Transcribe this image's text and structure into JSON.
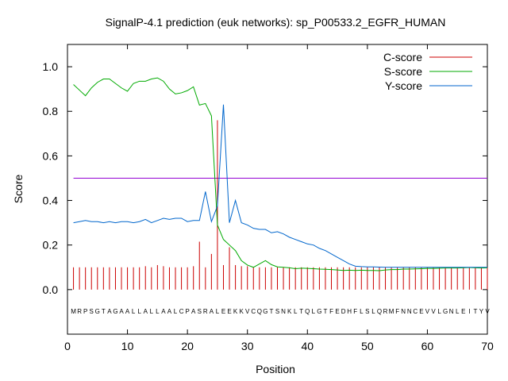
{
  "chart_data": {
    "type": "line",
    "title": "SignalP-4.1 prediction (euk networks): sp_P00533.2_EGFR_HUMAN",
    "xlabel": "Position",
    "ylabel": "Score",
    "xlim": [
      0,
      70
    ],
    "ylim": [
      -0.2,
      1.1
    ],
    "x_ticks": [
      "0",
      "10",
      "20",
      "30",
      "40",
      "50",
      "60",
      "70"
    ],
    "y_ticks": [
      "0.0",
      "0.2",
      "0.4",
      "0.6",
      "0.8",
      "1.0"
    ],
    "x_tick_values": [
      0,
      10,
      20,
      30,
      40,
      50,
      60,
      70
    ],
    "y_tick_values": [
      0,
      0.2,
      0.4,
      0.6,
      0.8,
      1.0
    ],
    "grid": false,
    "legend_position": "top-right",
    "threshold": {
      "value": 0.5,
      "color": "#9400d3"
    },
    "sequence": "MRPSGTAGAALLALLAALCPASRALEEKKVCQGTSNKLTQLGTFEDHFLSLQRMFNNCEVVLGNLEITYV",
    "series": [
      {
        "name": "C-score",
        "color": "#cc0000",
        "style": "impulses",
        "values": [
          0.1,
          0.1,
          0.1,
          0.1,
          0.1,
          0.1,
          0.1,
          0.1,
          0.1,
          0.1,
          0.1,
          0.1,
          0.105,
          0.1,
          0.11,
          0.105,
          0.1,
          0.1,
          0.1,
          0.1,
          0.105,
          0.215,
          0.1,
          0.16,
          0.76,
          0.11,
          0.19,
          0.11,
          0.105,
          0.105,
          0.1,
          0.1,
          0.1,
          0.1,
          0.1,
          0.1,
          0.1,
          0.1,
          0.1,
          0.1,
          0.1,
          0.1,
          0.1,
          0.1,
          0.1,
          0.1,
          0.1,
          0.1,
          0.1,
          0.1,
          0.1,
          0.1,
          0.1,
          0.1,
          0.1,
          0.1,
          0.1,
          0.1,
          0.1,
          0.1,
          0.1,
          0.1,
          0.1,
          0.1,
          0.1,
          0.1,
          0.1,
          0.1,
          0.1,
          0.1
        ]
      },
      {
        "name": "S-score",
        "color": "#00aa00",
        "style": "line",
        "values": [
          0.92,
          0.895,
          0.87,
          0.905,
          0.93,
          0.945,
          0.945,
          0.925,
          0.905,
          0.89,
          0.925,
          0.935,
          0.935,
          0.945,
          0.95,
          0.935,
          0.9,
          0.878,
          0.883,
          0.893,
          0.91,
          0.828,
          0.835,
          0.78,
          0.29,
          0.225,
          0.2,
          0.175,
          0.13,
          0.11,
          0.1,
          0.115,
          0.13,
          0.112,
          0.102,
          0.1,
          0.098,
          0.094,
          0.096,
          0.095,
          0.094,
          0.092,
          0.091,
          0.09,
          0.088,
          0.086,
          0.087,
          0.086,
          0.087,
          0.086,
          0.086,
          0.085,
          0.088,
          0.09,
          0.09,
          0.092,
          0.092,
          0.093,
          0.094,
          0.095,
          0.095,
          0.096,
          0.097,
          0.097,
          0.097,
          0.098,
          0.099,
          0.098,
          0.097,
          0.098
        ]
      },
      {
        "name": "Y-score",
        "color": "#0066cc",
        "style": "line",
        "values": [
          0.3,
          0.305,
          0.31,
          0.305,
          0.305,
          0.3,
          0.305,
          0.3,
          0.305,
          0.305,
          0.3,
          0.305,
          0.315,
          0.3,
          0.31,
          0.32,
          0.315,
          0.32,
          0.32,
          0.305,
          0.31,
          0.31,
          0.44,
          0.305,
          0.375,
          0.83,
          0.3,
          0.4,
          0.3,
          0.29,
          0.275,
          0.27,
          0.27,
          0.255,
          0.26,
          0.25,
          0.235,
          0.225,
          0.215,
          0.205,
          0.2,
          0.185,
          0.175,
          0.16,
          0.145,
          0.13,
          0.115,
          0.105,
          0.103,
          0.102,
          0.102,
          0.101,
          0.1,
          0.1,
          0.1,
          0.1,
          0.1,
          0.1,
          0.1,
          0.1,
          0.1,
          0.1,
          0.1,
          0.1,
          0.1,
          0.1,
          0.1,
          0.1,
          0.1,
          0.1
        ]
      }
    ]
  }
}
